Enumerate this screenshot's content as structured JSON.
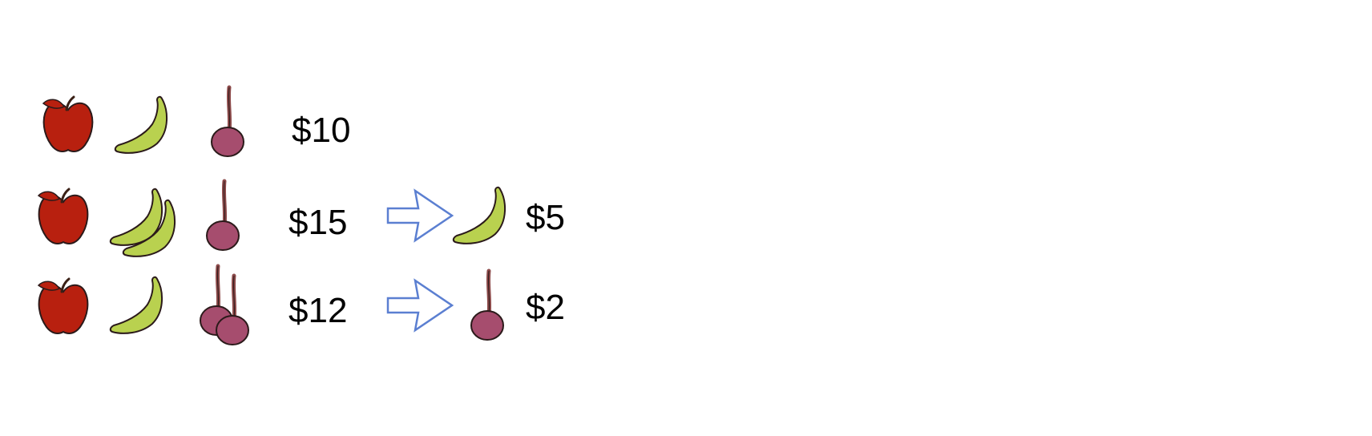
{
  "colors": {
    "apple": "#b8200f",
    "banana": "#b9d14f",
    "cherry": "#a64d6e",
    "stem": "#8c4a4a",
    "arrow": "#5b7fd1",
    "outline": "#2b1a1a"
  },
  "icons": [
    "apple-icon",
    "banana-icon",
    "cherry-icon",
    "arrow-right-icon"
  ],
  "rows": [
    {
      "items": [
        {
          "fruit": "apple",
          "count": 1
        },
        {
          "fruit": "banana",
          "count": 1
        },
        {
          "fruit": "cherry",
          "count": 1
        }
      ],
      "price": "$10"
    },
    {
      "items": [
        {
          "fruit": "apple",
          "count": 1
        },
        {
          "fruit": "banana",
          "count": 2
        },
        {
          "fruit": "cherry",
          "count": 1
        }
      ],
      "price": "$15",
      "result": {
        "fruit": "banana",
        "price": "$5"
      }
    },
    {
      "items": [
        {
          "fruit": "apple",
          "count": 1
        },
        {
          "fruit": "banana",
          "count": 1
        },
        {
          "fruit": "cherry",
          "count": 2
        }
      ],
      "price": "$12",
      "result": {
        "fruit": "cherry",
        "price": "$2"
      }
    }
  ]
}
